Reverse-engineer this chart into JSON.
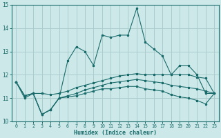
{
  "xlabel": "Humidex (Indice chaleur)",
  "background_color": "#cce8e8",
  "grid_color": "#aacccc",
  "line_color": "#1a6b6b",
  "ylim": [
    10,
    15
  ],
  "xlim": [
    -0.5,
    23.5
  ],
  "yticks": [
    10,
    11,
    12,
    13,
    14,
    15
  ],
  "xticks": [
    0,
    1,
    2,
    3,
    4,
    5,
    6,
    7,
    8,
    9,
    10,
    11,
    12,
    13,
    14,
    15,
    16,
    17,
    18,
    19,
    20,
    21,
    22,
    23
  ],
  "curves": [
    [
      11.7,
      11.0,
      11.2,
      10.3,
      10.5,
      11.0,
      12.6,
      13.2,
      13.0,
      12.4,
      13.7,
      13.6,
      13.7,
      13.7,
      14.85,
      13.4,
      13.1,
      12.8,
      12.0,
      12.4,
      12.4,
      12.0,
      11.2,
      11.2
    ],
    [
      11.7,
      11.1,
      11.2,
      11.2,
      11.15,
      11.2,
      11.3,
      11.45,
      11.55,
      11.65,
      11.75,
      11.85,
      11.95,
      12.0,
      12.05,
      12.0,
      12.0,
      12.0,
      12.0,
      12.0,
      12.0,
      11.9,
      11.85,
      11.2
    ],
    [
      11.7,
      11.1,
      11.2,
      10.3,
      10.5,
      11.0,
      11.1,
      11.2,
      11.35,
      11.45,
      11.55,
      11.65,
      11.7,
      11.75,
      11.8,
      11.75,
      11.7,
      11.65,
      11.55,
      11.5,
      11.45,
      11.4,
      11.3,
      11.2
    ],
    [
      11.7,
      11.1,
      11.2,
      10.3,
      10.5,
      11.0,
      11.05,
      11.1,
      11.2,
      11.3,
      11.4,
      11.4,
      11.45,
      11.5,
      11.5,
      11.4,
      11.35,
      11.3,
      11.15,
      11.05,
      11.0,
      10.9,
      10.75,
      11.2
    ]
  ]
}
